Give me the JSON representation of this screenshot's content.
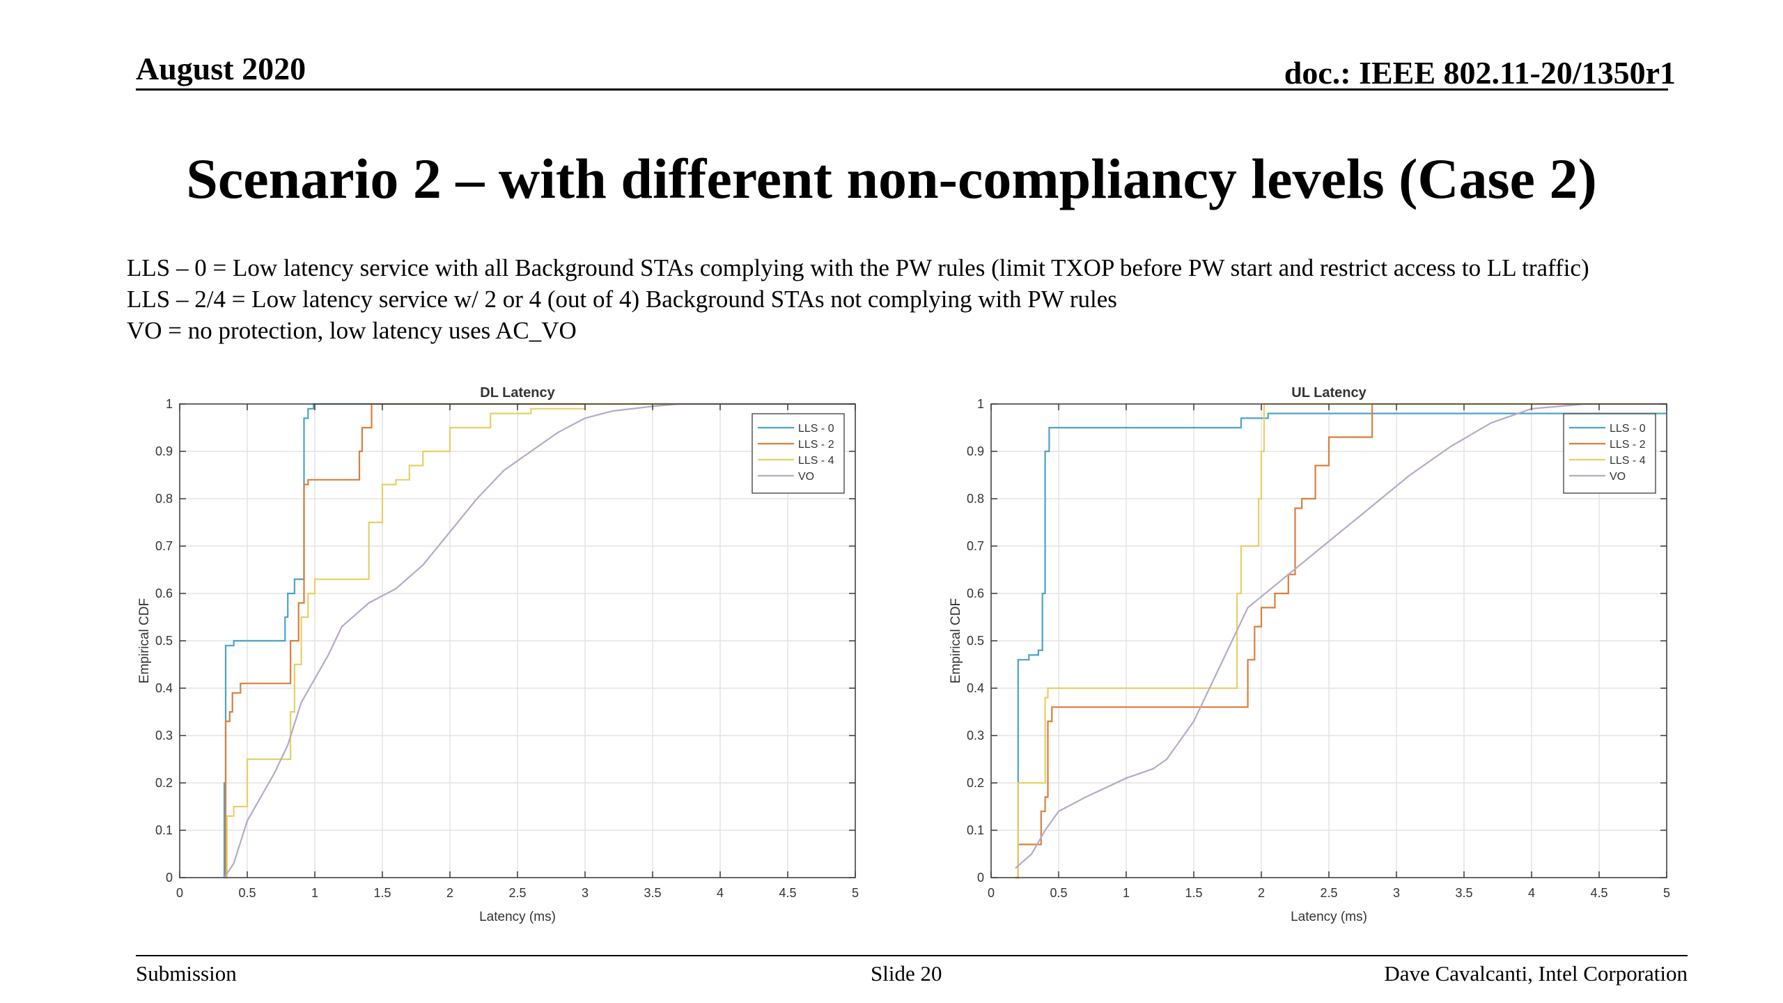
{
  "header": {
    "date": "August 2020",
    "doc": "doc.: IEEE 802.11-20/1350r1"
  },
  "title": "Scenario 2 – with different non-compliancy levels (Case 2)",
  "description": [
    "LLS – 0 = Low latency service with all Background STAs complying with  the PW rules (limit TXOP before PW start and restrict access to LL traffic)",
    "LLS – 2/4 = Low latency service w/ 2 or 4 (out of 4) Background STAs not complying with PW rules",
    "VO  = no protection, low latency uses AC_VO"
  ],
  "footer": {
    "left": "Submission",
    "center": "Slide 20",
    "right": "Dave Cavalcanti, Intel Corporation"
  },
  "colors": {
    "LLS - 0": "#4aa3c8",
    "LLS - 2": "#d97f3c",
    "LLS - 4": "#e8cf66",
    "VO": "#b8a8c8"
  },
  "chart_data": [
    {
      "type": "line",
      "title": "DL Latency",
      "xlabel": "Latency (ms)",
      "ylabel": "Empirical CDF",
      "xlim": [
        0,
        5
      ],
      "ylim": [
        0,
        1
      ],
      "xticks": [
        "0",
        "0.5",
        "1",
        "1.5",
        "2",
        "2.5",
        "3",
        "3.5",
        "4",
        "4.5",
        "5"
      ],
      "yticks": [
        "0",
        "0.1",
        "0.2",
        "0.3",
        "0.4",
        "0.5",
        "0.6",
        "0.7",
        "0.8",
        "0.9",
        "1"
      ],
      "grid": true,
      "legend_position": "top-right",
      "series": [
        {
          "name": "LLS - 0",
          "step": true,
          "points": [
            [
              0.33,
              0
            ],
            [
              0.33,
              0.2
            ],
            [
              0.34,
              0.49
            ],
            [
              0.4,
              0.5
            ],
            [
              0.78,
              0.5
            ],
            [
              0.78,
              0.55
            ],
            [
              0.8,
              0.6
            ],
            [
              0.85,
              0.63
            ],
            [
              0.9,
              0.63
            ],
            [
              0.92,
              0.97
            ],
            [
              0.95,
              0.99
            ],
            [
              0.99,
              1.0
            ],
            [
              5,
              1.0
            ]
          ]
        },
        {
          "name": "LLS - 2",
          "step": true,
          "points": [
            [
              0.33,
              0
            ],
            [
              0.34,
              0.33
            ],
            [
              0.37,
              0.35
            ],
            [
              0.39,
              0.39
            ],
            [
              0.45,
              0.41
            ],
            [
              0.8,
              0.41
            ],
            [
              0.82,
              0.5
            ],
            [
              0.88,
              0.58
            ],
            [
              0.92,
              0.83
            ],
            [
              0.95,
              0.84
            ],
            [
              1.3,
              0.84
            ],
            [
              1.33,
              0.9
            ],
            [
              1.35,
              0.95
            ],
            [
              1.42,
              1.0
            ],
            [
              5,
              1.0
            ]
          ]
        },
        {
          "name": "LLS - 4",
          "step": true,
          "points": [
            [
              0.33,
              0
            ],
            [
              0.35,
              0.13
            ],
            [
              0.4,
              0.15
            ],
            [
              0.5,
              0.25
            ],
            [
              0.8,
              0.25
            ],
            [
              0.82,
              0.35
            ],
            [
              0.85,
              0.45
            ],
            [
              0.9,
              0.55
            ],
            [
              0.95,
              0.6
            ],
            [
              1.0,
              0.63
            ],
            [
              1.3,
              0.63
            ],
            [
              1.4,
              0.75
            ],
            [
              1.5,
              0.83
            ],
            [
              1.6,
              0.84
            ],
            [
              1.7,
              0.87
            ],
            [
              1.8,
              0.9
            ],
            [
              2.0,
              0.95
            ],
            [
              2.3,
              0.98
            ],
            [
              2.6,
              0.99
            ],
            [
              3.0,
              1.0
            ],
            [
              5,
              1.0
            ]
          ]
        },
        {
          "name": "VO",
          "step": false,
          "points": [
            [
              0.33,
              0
            ],
            [
              0.4,
              0.03
            ],
            [
              0.5,
              0.12
            ],
            [
              0.6,
              0.17
            ],
            [
              0.7,
              0.22
            ],
            [
              0.8,
              0.28
            ],
            [
              0.9,
              0.37
            ],
            [
              1.0,
              0.42
            ],
            [
              1.1,
              0.47
            ],
            [
              1.2,
              0.53
            ],
            [
              1.4,
              0.58
            ],
            [
              1.6,
              0.61
            ],
            [
              1.8,
              0.66
            ],
            [
              2.0,
              0.73
            ],
            [
              2.2,
              0.8
            ],
            [
              2.4,
              0.86
            ],
            [
              2.6,
              0.9
            ],
            [
              2.8,
              0.94
            ],
            [
              3.0,
              0.97
            ],
            [
              3.2,
              0.985
            ],
            [
              3.5,
              0.995
            ],
            [
              3.7,
              1.0
            ],
            [
              5,
              1.0
            ]
          ]
        }
      ]
    },
    {
      "type": "line",
      "title": "UL Latency",
      "xlabel": "Latency (ms)",
      "ylabel": "Empirical CDF",
      "xlim": [
        0,
        5
      ],
      "ylim": [
        0,
        1
      ],
      "xticks": [
        "0",
        "0.5",
        "1",
        "1.5",
        "2",
        "2.5",
        "3",
        "3.5",
        "4",
        "4.5",
        "5"
      ],
      "yticks": [
        "0",
        "0.1",
        "0.2",
        "0.3",
        "0.4",
        "0.5",
        "0.6",
        "0.7",
        "0.8",
        "0.9",
        "1"
      ],
      "grid": true,
      "legend_position": "top-right",
      "series": [
        {
          "name": "LLS - 0",
          "step": true,
          "points": [
            [
              0.18,
              0
            ],
            [
              0.2,
              0.46
            ],
            [
              0.28,
              0.47
            ],
            [
              0.35,
              0.48
            ],
            [
              0.38,
              0.6
            ],
            [
              0.4,
              0.9
            ],
            [
              0.43,
              0.95
            ],
            [
              1.8,
              0.95
            ],
            [
              1.85,
              0.97
            ],
            [
              2.0,
              0.97
            ],
            [
              2.05,
              0.98
            ],
            [
              4.5,
              0.98
            ],
            [
              5,
              0.98
            ]
          ]
        },
        {
          "name": "LLS - 2",
          "step": true,
          "points": [
            [
              0.18,
              0
            ],
            [
              0.2,
              0.07
            ],
            [
              0.35,
              0.07
            ],
            [
              0.37,
              0.14
            ],
            [
              0.4,
              0.17
            ],
            [
              0.42,
              0.33
            ],
            [
              0.45,
              0.36
            ],
            [
              1.88,
              0.36
            ],
            [
              1.9,
              0.46
            ],
            [
              1.95,
              0.53
            ],
            [
              2.0,
              0.57
            ],
            [
              2.1,
              0.6
            ],
            [
              2.2,
              0.64
            ],
            [
              2.25,
              0.78
            ],
            [
              2.3,
              0.8
            ],
            [
              2.4,
              0.87
            ],
            [
              2.5,
              0.93
            ],
            [
              2.8,
              0.93
            ],
            [
              2.82,
              1.0
            ],
            [
              5,
              1.0
            ]
          ]
        },
        {
          "name": "LLS - 4",
          "step": true,
          "points": [
            [
              0.18,
              0
            ],
            [
              0.2,
              0.2
            ],
            [
              0.38,
              0.2
            ],
            [
              0.4,
              0.38
            ],
            [
              0.42,
              0.4
            ],
            [
              1.8,
              0.4
            ],
            [
              1.82,
              0.6
            ],
            [
              1.85,
              0.7
            ],
            [
              1.95,
              0.7
            ],
            [
              1.98,
              0.8
            ],
            [
              2.0,
              0.9
            ],
            [
              2.02,
              1.0
            ],
            [
              5,
              1.0
            ]
          ]
        },
        {
          "name": "VO",
          "step": false,
          "points": [
            [
              0.18,
              0.02
            ],
            [
              0.3,
              0.05
            ],
            [
              0.4,
              0.1
            ],
            [
              0.5,
              0.14
            ],
            [
              0.7,
              0.17
            ],
            [
              1.0,
              0.21
            ],
            [
              1.2,
              0.23
            ],
            [
              1.3,
              0.25
            ],
            [
              1.5,
              0.33
            ],
            [
              1.7,
              0.45
            ],
            [
              1.9,
              0.57
            ],
            [
              2.2,
              0.64
            ],
            [
              2.5,
              0.71
            ],
            [
              2.8,
              0.78
            ],
            [
              3.1,
              0.85
            ],
            [
              3.4,
              0.91
            ],
            [
              3.7,
              0.96
            ],
            [
              4.0,
              0.99
            ],
            [
              4.4,
              1.0
            ],
            [
              5,
              1.0
            ]
          ]
        }
      ]
    }
  ]
}
